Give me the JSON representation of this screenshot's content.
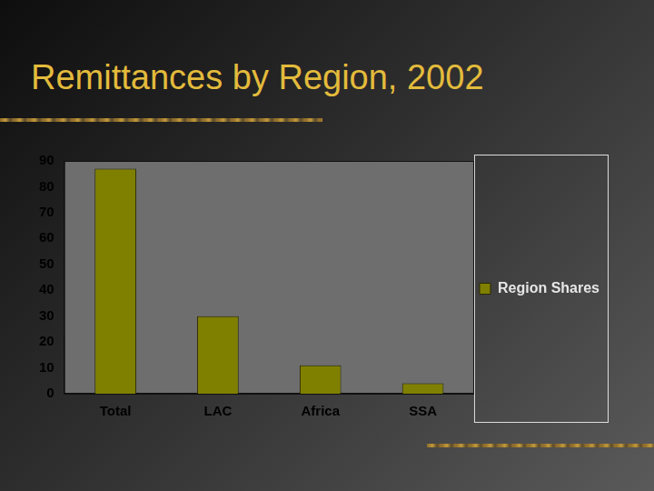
{
  "chart_data": {
    "type": "bar",
    "title": "Remittances by Region, 2002",
    "categories": [
      "Total",
      "LAC",
      "Africa",
      "SSA"
    ],
    "series": [
      {
        "name": "Region Shares",
        "color": "#808000",
        "values": [
          87,
          30,
          11,
          4
        ]
      }
    ],
    "ylim": [
      0,
      90
    ],
    "yticks": [
      0,
      10,
      20,
      30,
      40,
      50,
      60,
      70,
      80,
      90
    ],
    "grid": false,
    "legend": "right"
  }
}
